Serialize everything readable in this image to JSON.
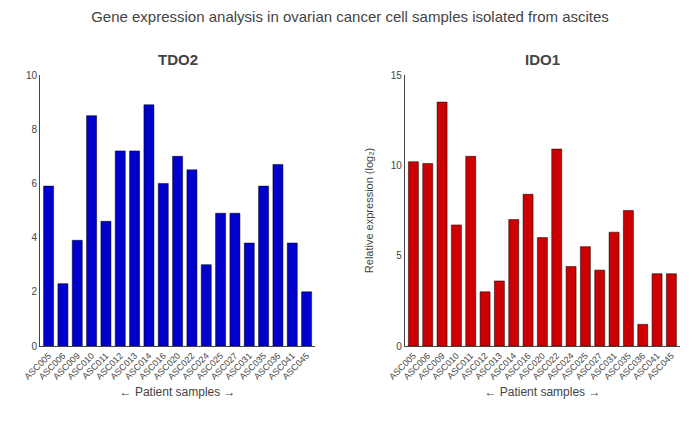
{
  "title": "Gene expression analysis in ovarian cancer cell samples isolated from ascites",
  "chart_data": [
    {
      "type": "bar",
      "title": "TDO2",
      "xlabel": "← Patient samples →",
      "categories": [
        "ASC005",
        "ASC006",
        "ASC009",
        "ASC010",
        "ASC011",
        "ASC012",
        "ASC013",
        "ASC014",
        "ASC016",
        "ASC020",
        "ASC022",
        "ASC024",
        "ASC025",
        "ASC027",
        "ASC031",
        "ASC035",
        "ASC036",
        "ASC041",
        "ASC045"
      ],
      "values": [
        5.9,
        2.3,
        3.9,
        8.5,
        4.6,
        7.2,
        7.2,
        8.9,
        6.0,
        7.0,
        6.5,
        3.0,
        4.9,
        4.9,
        3.8,
        5.9,
        6.7,
        3.8,
        2.0
      ],
      "color": "#0000CC",
      "ylim": [
        0,
        10
      ],
      "yticks": [
        0,
        2,
        4,
        6,
        8,
        10
      ],
      "grid": false
    },
    {
      "type": "bar",
      "title": "IDO1",
      "xlabel": "← Patient samples →",
      "ylabel": "Relative expression (log₂)",
      "categories": [
        "ASC005",
        "ASC006",
        "ASC009",
        "ASC010",
        "ASC011",
        "ASC012",
        "ASC013",
        "ASC014",
        "ASC016",
        "ASC020",
        "ASC022",
        "ASC024",
        "ASC025",
        "ASC027",
        "ASC031",
        "ASC035",
        "ASC036",
        "ASC041",
        "ASC045"
      ],
      "values": [
        10.2,
        10.1,
        13.5,
        6.7,
        10.5,
        3.0,
        3.6,
        7.0,
        8.4,
        6.0,
        10.9,
        4.4,
        5.5,
        4.2,
        6.3,
        7.5,
        1.2,
        4.0,
        4.0
      ],
      "color": "#CC0000",
      "ylim": [
        0,
        15
      ],
      "yticks": [
        0,
        5,
        10,
        15
      ],
      "grid": false
    }
  ]
}
